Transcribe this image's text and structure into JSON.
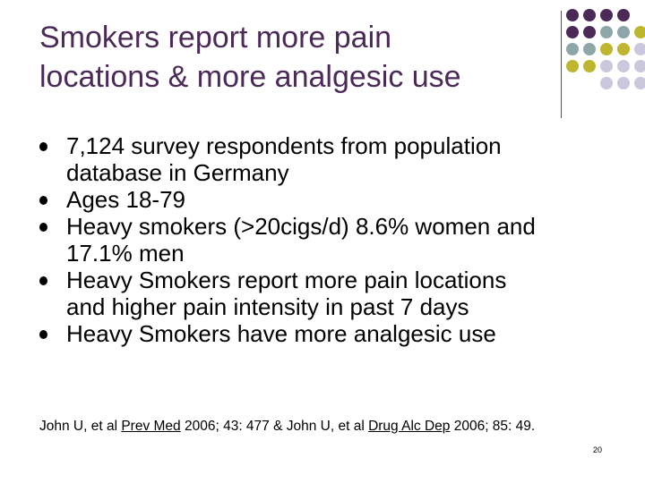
{
  "slide": {
    "title_lines": [
      "Smokers report more pain",
      "locations & more analgesic use"
    ],
    "bullets": [
      {
        "lines": [
          "7,124 survey respondents from population",
          "database in Germany"
        ]
      },
      {
        "lines": [
          "Ages 18-79"
        ]
      },
      {
        "lines": [
          "Heavy smokers (>20cigs/d) 8.6% women and",
          "17.1% men"
        ]
      },
      {
        "lines": [
          "Heavy Smokers report more pain locations",
          "and higher pain intensity in past 7 days"
        ]
      },
      {
        "lines": [
          "Heavy Smokers have more analgesic use"
        ]
      }
    ],
    "citation": {
      "part1": "John U, et al ",
      "journal1": "Prev Med",
      "part2": " 2006; 43: 477 & John U, et al ",
      "journal2": "Drug Alc Dep",
      "part3": " 2006; 85: 49."
    },
    "page_number": "20"
  },
  "colors": {
    "title": "#4b2a58",
    "dot_purple": "#4b2a58",
    "dot_teal": "#8ea6a8",
    "dot_olive": "#bdb62e",
    "dot_lavender": "#c9c8dc"
  }
}
